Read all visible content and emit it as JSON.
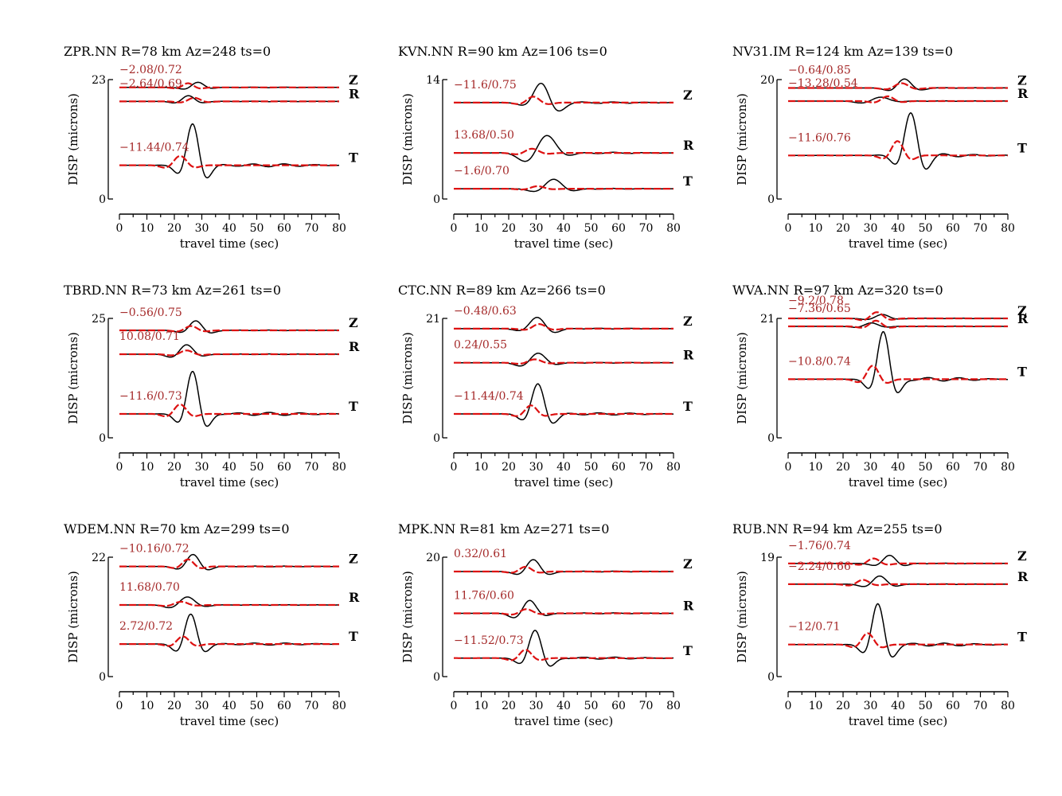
{
  "figure": {
    "colors": {
      "observed": "#000000",
      "synthetic": "#dd1111",
      "annotation": "#a52a2a"
    }
  },
  "chart_data": [
    {
      "type": "line",
      "title": "ZPR.NN R=78 km Az=248 ts=0",
      "ylabel": "DISP (microns)",
      "xlabel": "travel time (sec)",
      "xlim": [
        0,
        80
      ],
      "ylim": [
        0,
        23
      ],
      "ytick_labels": [
        "0",
        "23"
      ],
      "xtick_labels": [
        "0",
        "10",
        "20",
        "30",
        "40",
        "50",
        "60",
        "70",
        "80"
      ],
      "traces": [
        {
          "component": "Z",
          "annotation": "−2.08/0.72",
          "baseline": 21.5,
          "obs": {
            "center": 28,
            "width": 3.6,
            "amp": 1.0,
            "phase": 1.2
          },
          "syn": {
            "center": 25,
            "width": 3.2,
            "amp": 0.8,
            "phase": 1.6
          }
        },
        {
          "component": "R",
          "annotation": "−2.64/0.69",
          "baseline": 18.8,
          "obs": {
            "center": 25,
            "width": 3.6,
            "amp": 1.1,
            "phase": 1.5
          },
          "syn": {
            "center": 27,
            "width": 3.6,
            "amp": 0.7,
            "phase": 1.4
          }
        },
        {
          "component": "T",
          "annotation": "−11.44/0.74",
          "baseline": 6.5,
          "obs": {
            "center": 27,
            "width": 3.6,
            "amp": 8.0,
            "phase": 1.8
          },
          "syn": {
            "center": 22,
            "width": 3.8,
            "amp": 1.8,
            "phase": 1.5
          }
        }
      ]
    },
    {
      "type": "line",
      "title": "KVN.NN R=90 km Az=106 ts=0",
      "ylabel": "DISP (microns)",
      "xlabel": "travel time (sec)",
      "xlim": [
        0,
        80
      ],
      "ylim": [
        0,
        14
      ],
      "ytick_labels": [
        "0",
        "14"
      ],
      "xtick_labels": [
        "0",
        "10",
        "20",
        "30",
        "40",
        "50",
        "60",
        "70",
        "80"
      ],
      "traces": [
        {
          "component": "Z",
          "annotation": "−11.6/0.75",
          "baseline": 11.3,
          "obs": {
            "center": 33,
            "width": 4.5,
            "amp": 2.4,
            "phase": 2.2
          },
          "syn": {
            "center": 29,
            "width": 3.8,
            "amp": 0.7,
            "phase": 1.6
          }
        },
        {
          "component": "R",
          "annotation": "13.68/0.50",
          "baseline": 5.4,
          "obs": {
            "center": 32,
            "width": 5.5,
            "amp": 2.2,
            "phase": 0.8
          },
          "syn": {
            "center": 28,
            "width": 4.0,
            "amp": 0.5,
            "phase": 1.3
          }
        },
        {
          "component": "T",
          "annotation": "−1.6/0.70",
          "baseline": 1.2,
          "obs": {
            "center": 36,
            "width": 5.0,
            "amp": 1.1,
            "phase": 1.4
          },
          "syn": {
            "center": 30,
            "width": 4.0,
            "amp": 0.3,
            "phase": 1.3
          }
        }
      ]
    },
    {
      "type": "line",
      "title": "NV31.IM R=124 km Az=139 ts=0",
      "ylabel": "DISP (microns)",
      "xlabel": "travel time (sec)",
      "xlim": [
        0,
        80
      ],
      "ylim": [
        0,
        20
      ],
      "ytick_labels": [
        "0",
        "20"
      ],
      "xtick_labels": [
        "0",
        "10",
        "20",
        "30",
        "40",
        "50",
        "60",
        "70",
        "80"
      ],
      "traces": [
        {
          "component": "Z",
          "annotation": "−0.64/0.85",
          "baseline": 18.6,
          "obs": {
            "center": 42,
            "width": 4.0,
            "amp": 1.5,
            "phase": 1.4
          },
          "syn": {
            "center": 41,
            "width": 4.0,
            "amp": 0.8,
            "phase": 1.4
          }
        },
        {
          "component": "R",
          "annotation": "−13.28/0.54",
          "baseline": 16.4,
          "obs": {
            "center": 32,
            "width": 5.0,
            "amp": 0.7,
            "phase": 0.8
          },
          "syn": {
            "center": 36,
            "width": 3.6,
            "amp": 0.8,
            "phase": 1.4
          }
        },
        {
          "component": "T",
          "annotation": "−11.6/0.76",
          "baseline": 7.3,
          "obs": {
            "center": 45,
            "width": 3.8,
            "amp": 7.0,
            "phase": 1.8
          },
          "syn": {
            "center": 40,
            "width": 3.6,
            "amp": 2.4,
            "phase": 1.7
          }
        }
      ]
    },
    {
      "type": "line",
      "title": "TBRD.NN R=73 km Az=261 ts=0",
      "ylabel": "DISP (microns)",
      "xlabel": "travel time (sec)",
      "xlim": [
        0,
        80
      ],
      "ylim": [
        0,
        25
      ],
      "ytick_labels": [
        "0",
        "25"
      ],
      "xtick_labels": [
        "0",
        "10",
        "20",
        "30",
        "40",
        "50",
        "60",
        "70",
        "80"
      ],
      "traces": [
        {
          "component": "Z",
          "annotation": "−0.56/0.75",
          "baseline": 22.5,
          "obs": {
            "center": 28,
            "width": 3.8,
            "amp": 2.0,
            "phase": 1.7
          },
          "syn": {
            "center": 26,
            "width": 3.6,
            "amp": 0.9,
            "phase": 1.5
          }
        },
        {
          "component": "R",
          "annotation": "10.08/0.71",
          "baseline": 17.5,
          "obs": {
            "center": 24,
            "width": 4.0,
            "amp": 2.0,
            "phase": 1.3
          },
          "syn": {
            "center": 24,
            "width": 3.8,
            "amp": 0.8,
            "phase": 1.3
          }
        },
        {
          "component": "T",
          "annotation": "−11.6/0.73",
          "baseline": 5.0,
          "obs": {
            "center": 27,
            "width": 3.6,
            "amp": 9.0,
            "phase": 1.8
          },
          "syn": {
            "center": 22,
            "width": 3.6,
            "amp": 2.0,
            "phase": 1.5
          }
        }
      ]
    },
    {
      "type": "line",
      "title": "CTC.NN R=89 km Az=266 ts=0",
      "ylabel": "DISP (microns)",
      "xlabel": "travel time (sec)",
      "xlim": [
        0,
        80
      ],
      "ylim": [
        0,
        21
      ],
      "ytick_labels": [
        "0",
        "21"
      ],
      "xtick_labels": [
        "0",
        "10",
        "20",
        "30",
        "40",
        "50",
        "60",
        "70",
        "80"
      ],
      "traces": [
        {
          "component": "Z",
          "annotation": "−0.48/0.63",
          "baseline": 19.2,
          "obs": {
            "center": 31,
            "width": 4.5,
            "amp": 2.0,
            "phase": 1.9
          },
          "syn": {
            "center": 31,
            "width": 3.8,
            "amp": 0.8,
            "phase": 1.5
          }
        },
        {
          "component": "R",
          "annotation": "0.24/0.55",
          "baseline": 13.2,
          "obs": {
            "center": 30,
            "width": 4.5,
            "amp": 1.7,
            "phase": 1.2
          },
          "syn": {
            "center": 29,
            "width": 4.0,
            "amp": 0.6,
            "phase": 1.3
          }
        },
        {
          "component": "T",
          "annotation": "−11.44/0.74",
          "baseline": 4.2,
          "obs": {
            "center": 31,
            "width": 3.8,
            "amp": 5.3,
            "phase": 1.8
          },
          "syn": {
            "center": 28,
            "width": 3.6,
            "amp": 1.5,
            "phase": 1.5
          }
        }
      ]
    },
    {
      "type": "line",
      "title": "WVA.NN R=97 km Az=320 ts=0",
      "ylabel": "DISP (microns)",
      "xlabel": "travel time (sec)",
      "xlim": [
        0,
        80
      ],
      "ylim": [
        0,
        21
      ],
      "ytick_labels": [
        "0",
        "21"
      ],
      "xtick_labels": [
        "0",
        "10",
        "20",
        "30",
        "40",
        "50",
        "60",
        "70",
        "80"
      ],
      "traces": [
        {
          "component": "Z",
          "annotation": "−9.2/0.78",
          "baseline": 21.0,
          "obs": {
            "center": 34,
            "width": 4.0,
            "amp": 0.7,
            "phase": 1.4
          },
          "syn": {
            "center": 32,
            "width": 3.6,
            "amp": 1.1,
            "phase": 1.4
          }
        },
        {
          "component": "R",
          "annotation": "−7.36/0.65",
          "baseline": 19.6,
          "obs": {
            "center": 30,
            "width": 4.0,
            "amp": 0.6,
            "phase": 1.4
          },
          "syn": {
            "center": 32,
            "width": 3.6,
            "amp": 1.0,
            "phase": 1.6
          }
        },
        {
          "component": "T",
          "annotation": "−10.8/0.74",
          "baseline": 10.3,
          "obs": {
            "center": 35,
            "width": 3.6,
            "amp": 8.5,
            "phase": 1.8
          },
          "syn": {
            "center": 31,
            "width": 3.6,
            "amp": 2.4,
            "phase": 1.7
          }
        }
      ]
    },
    {
      "type": "line",
      "title": "WDEM.NN R=70 km Az=299 ts=0",
      "ylabel": "DISP (microns)",
      "xlabel": "travel time (sec)",
      "xlim": [
        0,
        80
      ],
      "ylim": [
        0,
        22
      ],
      "ytick_labels": [
        "0",
        "22"
      ],
      "xtick_labels": [
        "0",
        "10",
        "20",
        "30",
        "40",
        "50",
        "60",
        "70",
        "80"
      ],
      "traces": [
        {
          "component": "Z",
          "annotation": "−10.16/0.72",
          "baseline": 20.3,
          "obs": {
            "center": 27,
            "width": 3.8,
            "amp": 2.2,
            "phase": 1.7
          },
          "syn": {
            "center": 25,
            "width": 3.4,
            "amp": 1.3,
            "phase": 1.6
          }
        },
        {
          "component": "R",
          "annotation": "11.68/0.70",
          "baseline": 13.2,
          "obs": {
            "center": 24,
            "width": 4.5,
            "amp": 1.5,
            "phase": 1.2
          },
          "syn": {
            "center": 22,
            "width": 4.0,
            "amp": 0.6,
            "phase": 1.3
          }
        },
        {
          "component": "T",
          "annotation": "2.72/0.72",
          "baseline": 6.0,
          "obs": {
            "center": 26,
            "width": 3.6,
            "amp": 5.5,
            "phase": 1.6
          },
          "syn": {
            "center": 23,
            "width": 3.6,
            "amp": 1.4,
            "phase": 1.5
          }
        }
      ]
    },
    {
      "type": "line",
      "title": "MPK.NN R=81 km Az=271 ts=0",
      "ylabel": "DISP (microns)",
      "xlabel": "travel time (sec)",
      "xlim": [
        0,
        80
      ],
      "ylim": [
        0,
        20
      ],
      "ytick_labels": [
        "0",
        "20"
      ],
      "xtick_labels": [
        "0",
        "10",
        "20",
        "30",
        "40",
        "50",
        "60",
        "70",
        "80"
      ],
      "traces": [
        {
          "component": "Z",
          "annotation": "0.32/0.61",
          "baseline": 17.6,
          "obs": {
            "center": 29,
            "width": 4.0,
            "amp": 2.0,
            "phase": 1.6
          },
          "syn": {
            "center": 26,
            "width": 3.6,
            "amp": 0.8,
            "phase": 1.5
          }
        },
        {
          "component": "R",
          "annotation": "11.76/0.60",
          "baseline": 10.6,
          "obs": {
            "center": 27,
            "width": 4.0,
            "amp": 2.2,
            "phase": 1.2
          },
          "syn": {
            "center": 26,
            "width": 3.8,
            "amp": 0.7,
            "phase": 1.3
          }
        },
        {
          "component": "T",
          "annotation": "−11.52/0.73",
          "baseline": 3.1,
          "obs": {
            "center": 30,
            "width": 3.8,
            "amp": 4.7,
            "phase": 1.8
          },
          "syn": {
            "center": 26,
            "width": 3.6,
            "amp": 1.4,
            "phase": 1.5
          }
        }
      ]
    },
    {
      "type": "line",
      "title": "RUB.NN R=94 km Az=255 ts=0",
      "ylabel": "DISP (microns)",
      "xlabel": "travel time (sec)",
      "xlim": [
        0,
        80
      ],
      "ylim": [
        0,
        19
      ],
      "ytick_labels": [
        "0",
        "19"
      ],
      "xtick_labels": [
        "0",
        "10",
        "20",
        "30",
        "40",
        "50",
        "60",
        "70",
        "80"
      ],
      "traces": [
        {
          "component": "Z",
          "annotation": "−1.76/0.74",
          "baseline": 18.0,
          "obs": {
            "center": 37,
            "width": 3.8,
            "amp": 1.3,
            "phase": 1.6
          },
          "syn": {
            "center": 31,
            "width": 3.6,
            "amp": 0.8,
            "phase": 1.5
          }
        },
        {
          "component": "R",
          "annotation": "−2.24/0.66",
          "baseline": 14.7,
          "obs": {
            "center": 33,
            "width": 4.0,
            "amp": 1.3,
            "phase": 1.4
          },
          "syn": {
            "center": 27,
            "width": 3.6,
            "amp": 0.7,
            "phase": 1.4
          }
        },
        {
          "component": "T",
          "annotation": "−12/0.71",
          "baseline": 5.1,
          "obs": {
            "center": 33,
            "width": 3.6,
            "amp": 6.5,
            "phase": 1.8
          },
          "syn": {
            "center": 29,
            "width": 3.6,
            "amp": 1.8,
            "phase": 1.6
          }
        }
      ]
    }
  ]
}
